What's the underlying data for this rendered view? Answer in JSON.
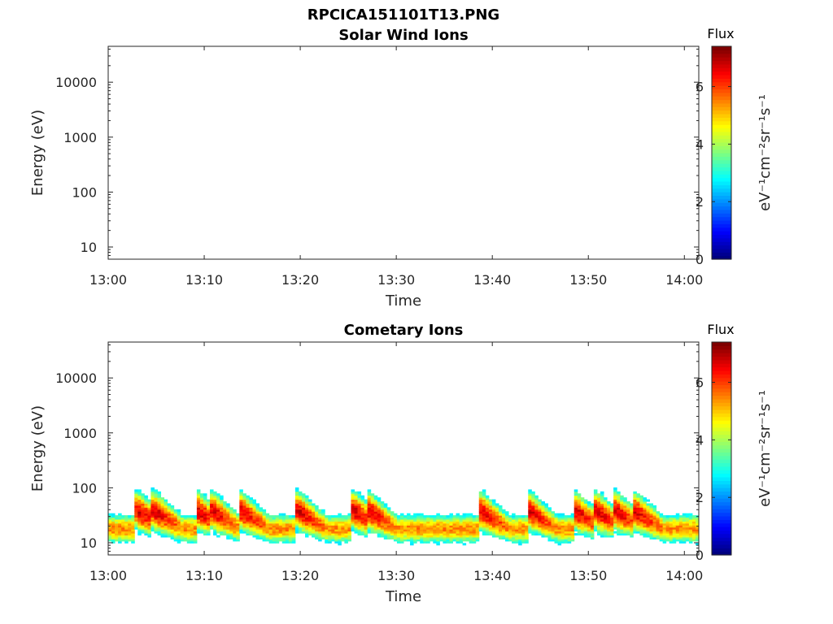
{
  "figure_title": "RPCICA151101T13.PNG",
  "colors": {
    "axis": "#262626",
    "colormap": [
      "#00007f",
      "#0000ff",
      "#007fff",
      "#00ffff",
      "#7fff7f",
      "#ffff00",
      "#ff7f00",
      "#ff0000",
      "#7f0000"
    ]
  },
  "chart_data": [
    {
      "type": "heatmap",
      "title": "Solar Wind Ions",
      "xlabel": "Time",
      "ylabel": "Energy (eV)",
      "xticks": [
        "13:00",
        "13:10",
        "13:20",
        "13:30",
        "13:40",
        "13:50",
        "14:00"
      ],
      "xlim_minutes": [
        0,
        61.5
      ],
      "yscale": "log",
      "yticks": [
        "10",
        "100",
        "1000",
        "10000"
      ],
      "ylim": [
        6,
        45000
      ],
      "colorbar": {
        "title": "Flux",
        "label": "eV⁻¹cm⁻²sr⁻¹s⁻¹",
        "ticks": [
          "0",
          "2",
          "4",
          "6"
        ],
        "range": [
          0,
          7.4
        ]
      },
      "cells": []
    },
    {
      "type": "heatmap",
      "title": "Cometary Ions",
      "xlabel": "Time",
      "ylabel": "Energy (eV)",
      "xticks": [
        "13:00",
        "13:10",
        "13:20",
        "13:30",
        "13:40",
        "13:50",
        "14:00"
      ],
      "xlim_minutes": [
        0,
        61.5
      ],
      "yscale": "log",
      "yticks": [
        "10",
        "100",
        "1000",
        "10000"
      ],
      "ylim": [
        6,
        45000
      ],
      "colorbar": {
        "title": "Flux",
        "label": "eV⁻¹cm⁻²sr⁻¹s⁻¹",
        "ticks": [
          "0",
          "2",
          "4",
          "6"
        ],
        "range": [
          0,
          7.4
        ]
      },
      "band_peaks_minutes": [
        3.3,
        5,
        9.5,
        11,
        14,
        20,
        25.8,
        27.3,
        39,
        44,
        48.8,
        51,
        53,
        55
      ],
      "base_peak_energy_ev": 18,
      "max_flux": 7.2
    }
  ]
}
